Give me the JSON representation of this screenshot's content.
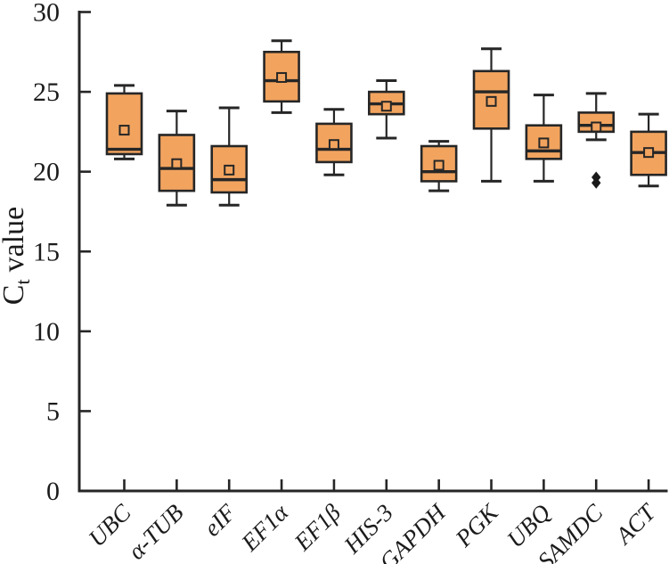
{
  "chart_data": {
    "type": "box",
    "title": "",
    "ylabel": {
      "base": "C",
      "subscript": "t",
      "rest": "value"
    },
    "xlabel": "",
    "ylim": [
      0,
      30
    ],
    "yticks": [
      0,
      5,
      10,
      15,
      20,
      25,
      30
    ],
    "grid": false,
    "legend": null,
    "categories": [
      "UBC",
      "α-TUB",
      "eIF",
      "EF1α",
      "EF1β",
      "HIS-3",
      "GAPDH",
      "PGK",
      "UBQ",
      "SAMDC",
      "ACT"
    ],
    "series": [
      {
        "name": "UBC",
        "whisker_low": 20.8,
        "q1": 21.1,
        "median": 21.4,
        "q3": 24.9,
        "whisker_high": 25.4,
        "mean": 22.6,
        "outliers": []
      },
      {
        "name": "α-TUB",
        "whisker_low": 17.9,
        "q1": 18.8,
        "median": 20.2,
        "q3": 22.3,
        "whisker_high": 23.8,
        "mean": 20.5,
        "outliers": []
      },
      {
        "name": "eIF",
        "whisker_low": 17.9,
        "q1": 18.7,
        "median": 19.5,
        "q3": 21.6,
        "whisker_high": 24.0,
        "mean": 20.1,
        "outliers": []
      },
      {
        "name": "EF1α",
        "whisker_low": 23.7,
        "q1": 24.4,
        "median": 25.7,
        "q3": 27.5,
        "whisker_high": 28.2,
        "mean": 25.9,
        "outliers": []
      },
      {
        "name": "EF1β",
        "whisker_low": 19.8,
        "q1": 20.6,
        "median": 21.4,
        "q3": 23.0,
        "whisker_high": 23.9,
        "mean": 21.7,
        "outliers": []
      },
      {
        "name": "HIS-3",
        "whisker_low": 22.1,
        "q1": 23.6,
        "median": 24.25,
        "q3": 25.0,
        "whisker_high": 25.7,
        "mean": 24.1,
        "outliers": []
      },
      {
        "name": "GAPDH",
        "whisker_low": 18.8,
        "q1": 19.4,
        "median": 20.0,
        "q3": 21.6,
        "whisker_high": 21.9,
        "mean": 20.4,
        "outliers": []
      },
      {
        "name": "PGK",
        "whisker_low": 19.4,
        "q1": 22.7,
        "median": 25.0,
        "q3": 26.3,
        "whisker_high": 27.7,
        "mean": 24.4,
        "outliers": []
      },
      {
        "name": "UBQ",
        "whisker_low": 19.4,
        "q1": 20.8,
        "median": 21.3,
        "q3": 22.9,
        "whisker_high": 24.8,
        "mean": 21.8,
        "outliers": []
      },
      {
        "name": "SAMDC",
        "whisker_low": 22.0,
        "q1": 22.5,
        "median": 22.9,
        "q3": 23.7,
        "whisker_high": 24.9,
        "mean": 22.8,
        "outliers": [
          19.65,
          19.3
        ]
      },
      {
        "name": "ACT",
        "whisker_low": 19.1,
        "q1": 19.8,
        "median": 21.2,
        "q3": 22.5,
        "whisker_high": 23.6,
        "mean": 21.2,
        "outliers": []
      }
    ],
    "colors": {
      "box_fill": "#F2A45F",
      "line": "#262626",
      "outlier": "#1a1a1a",
      "background": "#ffffff"
    }
  }
}
